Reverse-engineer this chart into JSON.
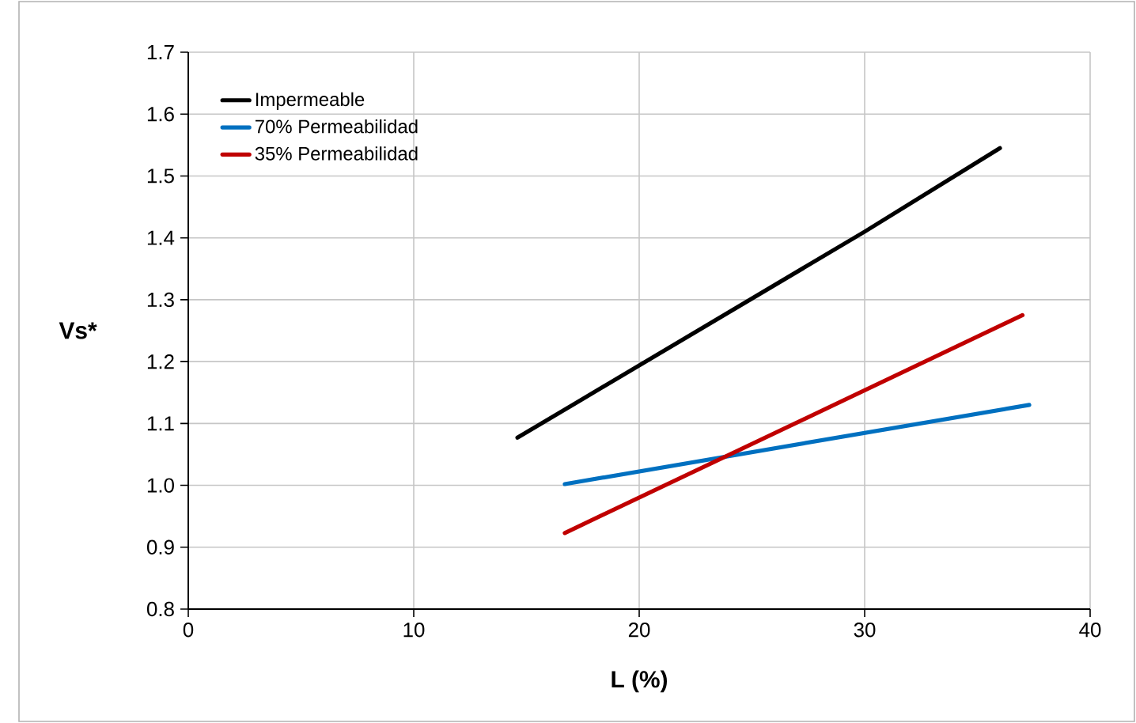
{
  "chart_data": {
    "type": "line",
    "xlabel": "L (%)",
    "ylabel": "Vs*",
    "xlim": [
      0,
      40
    ],
    "xticks": [
      0,
      10,
      20,
      30,
      40
    ],
    "ylim": [
      0.8,
      1.7
    ],
    "yticks": [
      {
        "value": 0.8,
        "label": "0.8"
      },
      {
        "value": 0.9,
        "label": "0.9"
      },
      {
        "value": 1.0,
        "label": "1.0"
      },
      {
        "value": 1.1,
        "label": "1.1"
      },
      {
        "value": 1.2,
        "label": "1.2"
      },
      {
        "value": 1.3,
        "label": "1.3"
      },
      {
        "value": 1.4,
        "label": "1.4"
      },
      {
        "value": 1.5,
        "label": "1.5"
      },
      {
        "value": 1.6,
        "label": "1.6"
      },
      {
        "value": 1.7,
        "label": "1.7"
      }
    ],
    "grid": true,
    "legend": "top left",
    "marker": "none",
    "line_style": "solid",
    "series": [
      {
        "name": "Impermeable",
        "color": "#000000",
        "x": [
          14.6,
          30.0,
          36.0
        ],
        "values": [
          1.077,
          1.41,
          1.545
        ]
      },
      {
        "name": "70% Permeabilidad",
        "color": "#0070c0",
        "x": [
          16.7,
          37.3
        ],
        "values": [
          1.002,
          1.13
        ]
      },
      {
        "name": "35% Permeabilidad",
        "color": "#c00000",
        "x": [
          16.7,
          37.0
        ],
        "values": [
          0.923,
          1.275
        ]
      }
    ]
  }
}
